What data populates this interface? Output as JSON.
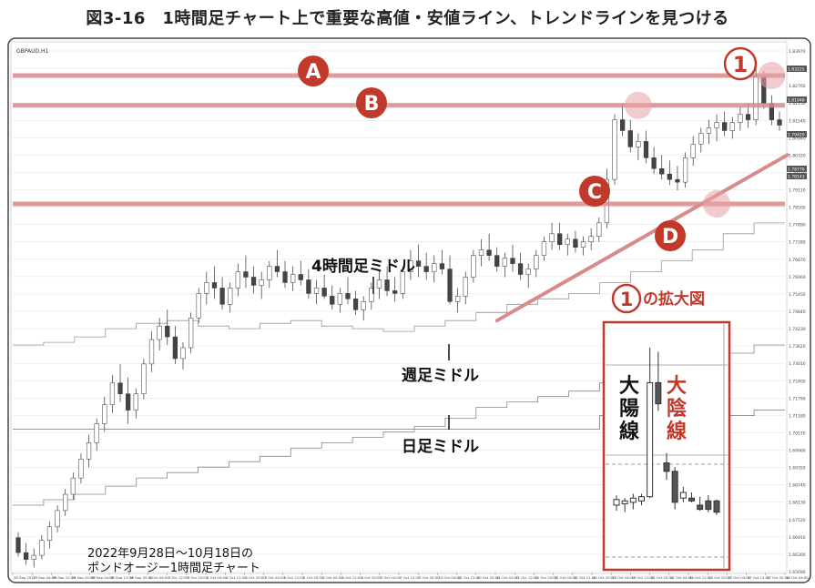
{
  "figure": {
    "title": "図3-16　1時間足チャート上で重要な高値・安値ライン、トレンドラインを見つける"
  },
  "chart_data": {
    "type": "candlestick",
    "symbol": "GBPAUD,H1",
    "timeframe": "H1",
    "x_tick_labels": [
      "28 Sep 2022",
      "29 Sep 04:00",
      "29 Sep 12:00",
      "29 Sep 20:00",
      "30 Sep 04:00",
      "30 Sep 12:00",
      "30 Sep 20:00",
      "3 Oct 04:00",
      "3 Oct 12:00",
      "3 Oct 20:00",
      "4 Oct 04:00",
      "4 Oct 12:00",
      "4 Oct 20:00",
      "5 Oct 04:00",
      "5 Oct 12:00",
      "5 Oct 20:00",
      "6 Oct 04:00",
      "6 Oct 12:00",
      "6 Oct 20:00",
      "7 Oct 04:00",
      "7 Oct 12:00",
      "7 Oct 20:00",
      "10 Oct 04:00",
      "10 Oct 12:00",
      "10 Oct 20:00",
      "11 Oct 04:00",
      "11 Oct 12:00",
      "11 Oct 20:00",
      "12 Oct 04:00",
      "12 Oct 12:00",
      "12 Oct 20:00",
      "13 Oct 04:00",
      "13 Oct 12:00",
      "13 Oct 20:00",
      "14 Oct 04:00",
      "14 Oct 12:00",
      "14 Oct 20:00",
      "17 Oct 04:00",
      "17 Oct 12:00",
      "17 Oct 20:00",
      "18 Oct 04:00"
    ],
    "y_tick_labels": [
      "1.83970",
      "1.83380",
      "1.82760",
      "1.82150",
      "1.81540",
      "1.80940",
      "1.80320",
      "1.79720",
      "1.79110",
      "1.78500",
      "1.77890",
      "1.77280",
      "1.76670",
      "1.76060",
      "1.75450",
      "1.74840",
      "1.74230",
      "1.73620",
      "1.73010",
      "1.72400",
      "1.71790",
      "1.71180",
      "1.70570",
      "1.69960",
      "1.69350",
      "1.68740",
      "1.68130",
      "1.67520",
      "1.66910",
      "1.66300",
      "1.65690"
    ],
    "y_range": [
      1.6515,
      1.842
    ],
    "price_labels": [
      "1.83225",
      "1.81948",
      "1.78776",
      "1.78143",
      "1.79420"
    ],
    "candles": [
      [
        1.664,
        1.666,
        1.657,
        1.6585
      ],
      [
        1.6585,
        1.662,
        1.654,
        1.656
      ],
      [
        1.656,
        1.66,
        1.653,
        1.6575
      ],
      [
        1.6575,
        1.665,
        1.656,
        1.663
      ],
      [
        1.663,
        1.67,
        1.66,
        1.668
      ],
      [
        1.668,
        1.676,
        1.666,
        1.674
      ],
      [
        1.674,
        1.682,
        1.672,
        1.68
      ],
      [
        1.68,
        1.688,
        1.678,
        1.686
      ],
      [
        1.686,
        1.695,
        1.684,
        1.693
      ],
      [
        1.693,
        1.702,
        1.69,
        1.699
      ],
      [
        1.699,
        1.708,
        1.696,
        1.706
      ],
      [
        1.706,
        1.716,
        1.703,
        1.713
      ],
      [
        1.713,
        1.724,
        1.71,
        1.721
      ],
      [
        1.721,
        1.728,
        1.714,
        1.717
      ],
      [
        1.717,
        1.723,
        1.706,
        1.711
      ],
      [
        1.711,
        1.719,
        1.708,
        1.717
      ],
      [
        1.717,
        1.73,
        1.715,
        1.728
      ],
      [
        1.728,
        1.74,
        1.725,
        1.737
      ],
      [
        1.737,
        1.745,
        1.733,
        1.742
      ],
      [
        1.742,
        1.748,
        1.735,
        1.738
      ],
      [
        1.738,
        1.742,
        1.728,
        1.73
      ],
      [
        1.73,
        1.736,
        1.726,
        1.734
      ],
      [
        1.734,
        1.747,
        1.732,
        1.745
      ],
      [
        1.745,
        1.756,
        1.743,
        1.754
      ],
      [
        1.754,
        1.762,
        1.75,
        1.758
      ],
      [
        1.758,
        1.764,
        1.752,
        1.756
      ],
      [
        1.756,
        1.76,
        1.748,
        1.75
      ],
      [
        1.75,
        1.758,
        1.747,
        1.756
      ],
      [
        1.756,
        1.765,
        1.753,
        1.762
      ],
      [
        1.762,
        1.768,
        1.756,
        1.76
      ],
      [
        1.76,
        1.764,
        1.754,
        1.757
      ],
      [
        1.757,
        1.762,
        1.752,
        1.759
      ],
      [
        1.759,
        1.766,
        1.756,
        1.764
      ],
      [
        1.764,
        1.77,
        1.76,
        1.762
      ],
      [
        1.762,
        1.766,
        1.756,
        1.758
      ],
      [
        1.758,
        1.764,
        1.755,
        1.761
      ],
      [
        1.761,
        1.766,
        1.757,
        1.759
      ],
      [
        1.759,
        1.763,
        1.752,
        1.754
      ],
      [
        1.754,
        1.759,
        1.75,
        1.756
      ],
      [
        1.756,
        1.761,
        1.752,
        1.753
      ],
      [
        1.753,
        1.757,
        1.748,
        1.75
      ],
      [
        1.75,
        1.756,
        1.747,
        1.754
      ],
      [
        1.754,
        1.76,
        1.75,
        1.752
      ],
      [
        1.752,
        1.755,
        1.746,
        1.748
      ],
      [
        1.748,
        1.753,
        1.744,
        1.751
      ],
      [
        1.751,
        1.758,
        1.748,
        1.756
      ],
      [
        1.756,
        1.762,
        1.752,
        1.759
      ],
      [
        1.759,
        1.764,
        1.753,
        1.755
      ],
      [
        1.755,
        1.76,
        1.751,
        1.754
      ],
      [
        1.754,
        1.764,
        1.752,
        1.762
      ],
      [
        1.762,
        1.77,
        1.759,
        1.766
      ],
      [
        1.766,
        1.772,
        1.76,
        1.764
      ],
      [
        1.764,
        1.769,
        1.759,
        1.762
      ],
      [
        1.762,
        1.768,
        1.758,
        1.765
      ],
      [
        1.765,
        1.77,
        1.761,
        1.763
      ],
      [
        1.763,
        1.768,
        1.75,
        1.751
      ],
      [
        1.751,
        1.756,
        1.747,
        1.753
      ],
      [
        1.753,
        1.762,
        1.75,
        1.76
      ],
      [
        1.76,
        1.77,
        1.758,
        1.768
      ],
      [
        1.768,
        1.774,
        1.764,
        1.77
      ],
      [
        1.77,
        1.776,
        1.766,
        1.768
      ],
      [
        1.768,
        1.771,
        1.762,
        1.764
      ],
      [
        1.764,
        1.769,
        1.76,
        1.767
      ],
      [
        1.767,
        1.772,
        1.762,
        1.765
      ],
      [
        1.765,
        1.769,
        1.759,
        1.761
      ],
      [
        1.761,
        1.765,
        1.756,
        1.763
      ],
      [
        1.763,
        1.77,
        1.76,
        1.768
      ],
      [
        1.768,
        1.775,
        1.766,
        1.773
      ],
      [
        1.773,
        1.78,
        1.77,
        1.776
      ],
      [
        1.776,
        1.78,
        1.77,
        1.772
      ],
      [
        1.772,
        1.776,
        1.768,
        1.774
      ],
      [
        1.774,
        1.777,
        1.769,
        1.771
      ],
      [
        1.771,
        1.775,
        1.768,
        1.773
      ],
      [
        1.773,
        1.778,
        1.77,
        1.775
      ],
      [
        1.775,
        1.782,
        1.773,
        1.78
      ],
      [
        1.78,
        1.8,
        1.778,
        1.796
      ],
      [
        1.796,
        1.82,
        1.794,
        1.818
      ],
      [
        1.818,
        1.824,
        1.812,
        1.814
      ],
      [
        1.814,
        1.818,
        1.806,
        1.808
      ],
      [
        1.808,
        1.813,
        1.803,
        1.81
      ],
      [
        1.81,
        1.814,
        1.802,
        1.804
      ],
      [
        1.804,
        1.808,
        1.798,
        1.8
      ],
      [
        1.8,
        1.805,
        1.796,
        1.798
      ],
      [
        1.798,
        1.803,
        1.794,
        1.796
      ],
      [
        1.796,
        1.801,
        1.792,
        1.795
      ],
      [
        1.795,
        1.806,
        1.793,
        1.804
      ],
      [
        1.804,
        1.812,
        1.801,
        1.809
      ],
      [
        1.809,
        1.815,
        1.806,
        1.813
      ],
      [
        1.813,
        1.818,
        1.809,
        1.815
      ],
      [
        1.815,
        1.82,
        1.81,
        1.817
      ],
      [
        1.817,
        1.821,
        1.812,
        1.814
      ],
      [
        1.814,
        1.819,
        1.811,
        1.817
      ],
      [
        1.817,
        1.823,
        1.814,
        1.82
      ],
      [
        1.82,
        1.824,
        1.815,
        1.818
      ],
      [
        1.818,
        1.838,
        1.816,
        1.834
      ],
      [
        1.834,
        1.836,
        1.822,
        1.824
      ],
      [
        1.824,
        1.827,
        1.816,
        1.818
      ],
      [
        1.818,
        1.821,
        1.814,
        1.816
      ]
    ],
    "moving_averages": {
      "h4_mid": [
        1.735,
        1.736,
        1.738,
        1.741,
        1.743,
        1.744,
        1.742,
        1.741,
        1.743,
        1.744,
        1.742,
        1.741,
        1.74,
        1.742,
        1.744,
        1.747,
        1.75,
        1.752,
        1.754,
        1.758,
        1.762,
        1.766,
        1.77,
        1.776,
        1.78
      ],
      "weekly_mid": [
        1.704,
        1.704,
        1.704,
        1.704,
        1.704,
        1.704,
        1.704,
        1.704,
        1.704,
        1.704,
        1.704,
        1.704,
        1.704,
        1.704,
        1.704,
        1.704,
        1.704,
        1.704,
        1.704,
        1.709,
        1.709,
        1.709,
        1.709,
        1.709,
        1.711
      ],
      "daily_mid": [
        1.676,
        1.678,
        1.68,
        1.683,
        1.686,
        1.688,
        1.69,
        1.692,
        1.694,
        1.697,
        1.699,
        1.701,
        1.703,
        1.705,
        1.708,
        1.712,
        1.714,
        1.716,
        1.718,
        1.721,
        1.724,
        1.727,
        1.73,
        1.732,
        1.735
      ]
    },
    "horizontal_lines": [
      {
        "label": "A",
        "price": 1.8343
      },
      {
        "label": "B",
        "price": 1.8233
      },
      {
        "label": "C",
        "price": 1.787
      }
    ],
    "trendline": {
      "label": "D",
      "from_index": 61,
      "from_price": 1.744,
      "to_index": 98,
      "to_price": 1.805
    },
    "annotations": {
      "marker_1": "①",
      "h4_mid_label": "4時間足ミドル",
      "weekly_mid_label": "週足ミドル",
      "daily_mid_label": "日足ミドル",
      "inset_title": "①の拡大図",
      "bull_label": "大陽線",
      "bear_label": "大陰線",
      "footnote_line1": "2022年9月28日～10月18日の",
      "footnote_line2": "ポンドオージー1時間足チャート"
    },
    "inset": {
      "candles": [
        [
          1.8183,
          1.819,
          1.8179,
          1.8187
        ],
        [
          1.8184,
          1.8188,
          1.8178,
          1.8186
        ],
        [
          1.8185,
          1.8191,
          1.818,
          1.8188
        ],
        [
          1.8186,
          1.8191,
          1.8183,
          1.8189
        ],
        [
          1.8189,
          1.8295,
          1.8188,
          1.827
        ],
        [
          1.827,
          1.8292,
          1.825,
          1.8255
        ],
        [
          1.8213,
          1.822,
          1.8201,
          1.8207
        ],
        [
          1.8207,
          1.821,
          1.818,
          1.8185
        ],
        [
          1.8188,
          1.8196,
          1.8185,
          1.8192
        ],
        [
          1.8188,
          1.8192,
          1.8185,
          1.8186
        ],
        [
          1.8183,
          1.8189,
          1.8179,
          1.818
        ],
        [
          1.8186,
          1.819,
          1.8178,
          1.818
        ],
        [
          1.8186,
          1.8187,
          1.8176,
          1.8178
        ]
      ],
      "y_range": [
        1.815,
        1.83
      ]
    }
  }
}
